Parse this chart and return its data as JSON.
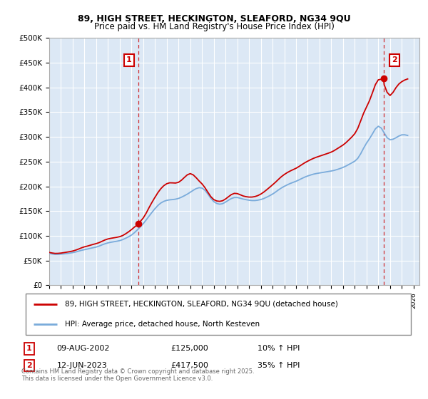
{
  "title": "89, HIGH STREET, HECKINGTON, SLEAFORD, NG34 9QU",
  "subtitle": "Price paid vs. HM Land Registry's House Price Index (HPI)",
  "legend_line1": "89, HIGH STREET, HECKINGTON, SLEAFORD, NG34 9QU (detached house)",
  "legend_line2": "HPI: Average price, detached house, North Kesteven",
  "annotation1_label": "1",
  "annotation1_date": "09-AUG-2002",
  "annotation1_price": "£125,000",
  "annotation1_hpi": "10% ↑ HPI",
  "annotation2_label": "2",
  "annotation2_date": "12-JUN-2023",
  "annotation2_price": "£417,500",
  "annotation2_hpi": "35% ↑ HPI",
  "footer": "Contains HM Land Registry data © Crown copyright and database right 2025.\nThis data is licensed under the Open Government Licence v3.0.",
  "ylim": [
    0,
    500000
  ],
  "yticks": [
    0,
    50000,
    100000,
    150000,
    200000,
    250000,
    300000,
    350000,
    400000,
    450000,
    500000
  ],
  "ytick_labels": [
    "£0",
    "£50K",
    "£100K",
    "£150K",
    "£200K",
    "£250K",
    "£300K",
    "£350K",
    "£400K",
    "£450K",
    "£500K"
  ],
  "xlim_start": 1995.0,
  "xlim_end": 2026.5,
  "chart_bg_color": "#dce8f5",
  "fig_bg_color": "#ffffff",
  "grid_color": "#ffffff",
  "red_line_color": "#cc0000",
  "blue_line_color": "#7aabdb",
  "dashed_vline_color": "#cc0000",
  "sale1_x": 2002.583,
  "sale1_y": 125000,
  "sale2_x": 2023.458,
  "sale2_y": 417500,
  "hpi_years": [
    1995.0,
    1995.25,
    1995.5,
    1995.75,
    1996.0,
    1996.25,
    1996.5,
    1996.75,
    1997.0,
    1997.25,
    1997.5,
    1997.75,
    1998.0,
    1998.25,
    1998.5,
    1998.75,
    1999.0,
    1999.25,
    1999.5,
    1999.75,
    2000.0,
    2000.25,
    2000.5,
    2000.75,
    2001.0,
    2001.25,
    2001.5,
    2001.75,
    2002.0,
    2002.25,
    2002.5,
    2002.75,
    2003.0,
    2003.25,
    2003.5,
    2003.75,
    2004.0,
    2004.25,
    2004.5,
    2004.75,
    2005.0,
    2005.25,
    2005.5,
    2005.75,
    2006.0,
    2006.25,
    2006.5,
    2006.75,
    2007.0,
    2007.25,
    2007.5,
    2007.75,
    2008.0,
    2008.25,
    2008.5,
    2008.75,
    2009.0,
    2009.25,
    2009.5,
    2009.75,
    2010.0,
    2010.25,
    2010.5,
    2010.75,
    2011.0,
    2011.25,
    2011.5,
    2011.75,
    2012.0,
    2012.25,
    2012.5,
    2012.75,
    2013.0,
    2013.25,
    2013.5,
    2013.75,
    2014.0,
    2014.25,
    2014.5,
    2014.75,
    2015.0,
    2015.25,
    2015.5,
    2015.75,
    2016.0,
    2016.25,
    2016.5,
    2016.75,
    2017.0,
    2017.25,
    2017.5,
    2017.75,
    2018.0,
    2018.25,
    2018.5,
    2018.75,
    2019.0,
    2019.25,
    2019.5,
    2019.75,
    2020.0,
    2020.25,
    2020.5,
    2020.75,
    2021.0,
    2021.25,
    2021.5,
    2021.75,
    2022.0,
    2022.25,
    2022.5,
    2022.75,
    2023.0,
    2023.25,
    2023.5,
    2023.75,
    2024.0,
    2024.25,
    2024.5,
    2024.75,
    2025.0,
    2025.25,
    2025.5
  ],
  "hpi_values": [
    65000,
    63000,
    62000,
    62500,
    63000,
    63500,
    64000,
    65000,
    66000,
    67000,
    69000,
    71000,
    72000,
    73000,
    75000,
    76000,
    77000,
    79000,
    82000,
    84000,
    86000,
    87000,
    88000,
    89000,
    90000,
    92000,
    95000,
    98000,
    101000,
    106000,
    112000,
    118000,
    124000,
    132000,
    140000,
    148000,
    155000,
    162000,
    167000,
    170000,
    172000,
    173000,
    173000,
    174000,
    175000,
    178000,
    181000,
    184000,
    188000,
    192000,
    196000,
    198000,
    198000,
    193000,
    185000,
    175000,
    168000,
    165000,
    163000,
    164000,
    168000,
    172000,
    176000,
    178000,
    178000,
    176000,
    174000,
    173000,
    172000,
    171000,
    171000,
    172000,
    173000,
    175000,
    178000,
    181000,
    184000,
    188000,
    193000,
    197000,
    200000,
    203000,
    206000,
    208000,
    210000,
    213000,
    216000,
    219000,
    221000,
    223000,
    225000,
    226000,
    227000,
    228000,
    229000,
    230000,
    231000,
    232000,
    234000,
    236000,
    238000,
    241000,
    244000,
    248000,
    250000,
    255000,
    265000,
    278000,
    288000,
    296000,
    305000,
    318000,
    325000,
    320000,
    308000,
    296000,
    292000,
    295000,
    298000,
    302000,
    305000,
    305000,
    302000
  ],
  "red_years": [
    1995.0,
    1995.25,
    1995.5,
    1995.75,
    1996.0,
    1996.25,
    1996.5,
    1996.75,
    1997.0,
    1997.25,
    1997.5,
    1997.75,
    1998.0,
    1998.25,
    1998.5,
    1998.75,
    1999.0,
    1999.25,
    1999.5,
    1999.75,
    2000.0,
    2000.25,
    2000.5,
    2000.75,
    2001.0,
    2001.25,
    2001.5,
    2001.75,
    2002.0,
    2002.25,
    2002.5,
    2002.583,
    2002.75,
    2003.0,
    2003.25,
    2003.5,
    2003.75,
    2004.0,
    2004.25,
    2004.5,
    2004.75,
    2005.0,
    2005.25,
    2005.5,
    2005.75,
    2006.0,
    2006.25,
    2006.5,
    2006.75,
    2007.0,
    2007.25,
    2007.5,
    2007.75,
    2008.0,
    2008.25,
    2008.5,
    2008.75,
    2009.0,
    2009.25,
    2009.5,
    2009.75,
    2010.0,
    2010.25,
    2010.5,
    2010.75,
    2011.0,
    2011.25,
    2011.5,
    2011.75,
    2012.0,
    2012.25,
    2012.5,
    2012.75,
    2013.0,
    2013.25,
    2013.5,
    2013.75,
    2014.0,
    2014.25,
    2014.5,
    2014.75,
    2015.0,
    2015.25,
    2015.5,
    2015.75,
    2016.0,
    2016.25,
    2016.5,
    2016.75,
    2017.0,
    2017.25,
    2017.5,
    2017.75,
    2018.0,
    2018.25,
    2018.5,
    2018.75,
    2019.0,
    2019.25,
    2019.5,
    2019.75,
    2020.0,
    2020.25,
    2020.5,
    2020.75,
    2021.0,
    2021.25,
    2021.5,
    2021.75,
    2022.0,
    2022.25,
    2022.5,
    2022.75,
    2023.0,
    2023.25,
    2023.458,
    2023.5,
    2023.75,
    2024.0,
    2024.25,
    2024.5,
    2024.75,
    2025.0,
    2025.25,
    2025.5
  ],
  "red_values": [
    67000,
    65000,
    64000,
    64500,
    65000,
    66000,
    67000,
    68000,
    69000,
    71000,
    73000,
    76000,
    78000,
    79000,
    81000,
    83000,
    84000,
    86000,
    89000,
    92000,
    94000,
    95000,
    96000,
    97000,
    98000,
    100000,
    104000,
    108000,
    112000,
    118000,
    123000,
    125000,
    128000,
    135000,
    145000,
    158000,
    168000,
    178000,
    188000,
    196000,
    202000,
    206000,
    208000,
    207000,
    206000,
    207000,
    212000,
    218000,
    224000,
    228000,
    224000,
    218000,
    210000,
    206000,
    198000,
    188000,
    178000,
    172000,
    170000,
    169000,
    170000,
    174000,
    179000,
    184000,
    187000,
    186000,
    183000,
    180000,
    179000,
    178000,
    178000,
    179000,
    181000,
    184000,
    188000,
    193000,
    198000,
    203000,
    208000,
    214000,
    220000,
    224000,
    228000,
    231000,
    234000,
    236000,
    240000,
    244000,
    248000,
    251000,
    254000,
    257000,
    259000,
    261000,
    263000,
    265000,
    267000,
    269000,
    272000,
    276000,
    280000,
    283000,
    288000,
    294000,
    300000,
    305000,
    315000,
    332000,
    350000,
    360000,
    372000,
    388000,
    408000,
    420000,
    415000,
    417500,
    410000,
    385000,
    378000,
    390000,
    400000,
    408000,
    412000,
    415000,
    418000
  ]
}
